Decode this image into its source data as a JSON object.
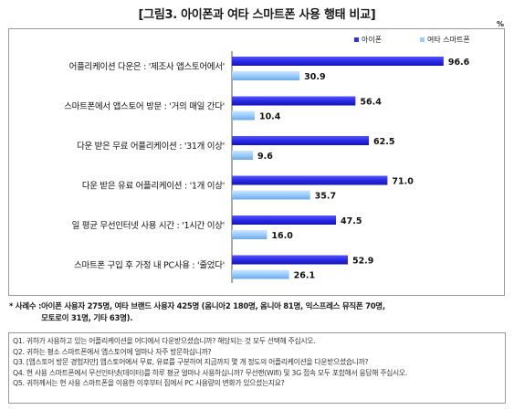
{
  "page": {
    "title": "[그림3. 아이폰과 여타 스마트폰 사용 행태 비교]",
    "unit": "%"
  },
  "chart_data": {
    "type": "bar",
    "orientation": "horizontal",
    "categories": [
      "어플리케이션 다운은 : '제조사 앱스토어에서'",
      "스마트폰에서 앱스토어 방문 : '거의 매일 간다'",
      "다운 받은 무료 어플리케이션 : '31개 이상'",
      "다운 받은 유료 어플리케이션 : '1개 이상'",
      "일 평균 무선인터넷 사용 시간 : '1시간 이상'",
      "스마트폰 구입 후 가정 내 PC사용 : '줄었다'"
    ],
    "series": [
      {
        "name": "아이폰",
        "color": "#3333ee",
        "values": [
          96.6,
          56.4,
          62.5,
          71.0,
          47.5,
          52.9
        ]
      },
      {
        "name": "여타 스마트폰",
        "color": "#99ccff",
        "values": [
          30.9,
          10.4,
          9.6,
          35.7,
          16.0,
          26.1
        ]
      }
    ],
    "xlim": [
      0,
      100
    ],
    "grid": false,
    "legend": "top-right"
  },
  "note": {
    "label": "* 사례수 : ",
    "text": "아이폰 사용자 275명, 여타 브랜드 사용자 425명 (옴니아2 180명, 옴니아 81명, 익스프레스 뮤직폰 70명,\n모토로이 31명, 기타 63명)."
  },
  "questions": [
    "Q1. 귀하가 사용하고 있는 어플리케이션을 어디에서 다운받으셨습니까? 해당되는 것 모두 선택해 주십시오.",
    "Q2. 귀하는 평소 스마트폰에서 앱스토어에 얼마나 자주 방문하십니까?",
    "Q3. [앱스토어 방문 경험자만] 앱스토어에서 무료, 유료를 구분하여 지금까지 몇 개 정도의 어플리케이션을 다운받으셨습니까?",
    "Q4. 현 사용 스마트폰에서 무선인터넷(데이터)를 하루 평균 얼마나 사용하십니까? 무선랜(Wifi) 및 3G 접속 모두 포함해서 응답해 주십시오.",
    "Q5. 귀하께서는 현 사용 스마트폰을 이용한 이후부터 집에서 PC 사용량의 변화가 있으셨는지요?"
  ]
}
